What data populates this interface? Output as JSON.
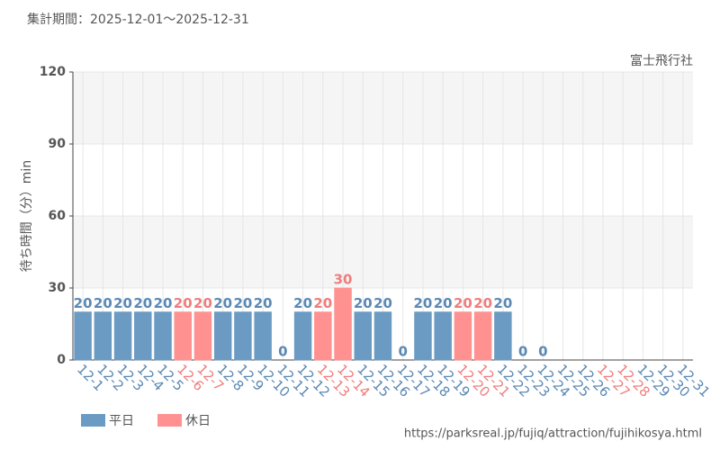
{
  "chart_data": {
    "type": "bar",
    "title": "集計期間：2025-12-01～2025-12-31",
    "annotation": "富士飛行社",
    "y_label": "待ち時間（分）min",
    "source": "https://parksreal.jp/fujiq/attraction/fujihikosya.html",
    "categories": [
      "12-1",
      "12-2",
      "12-3",
      "12-4",
      "12-5",
      "12-6",
      "12-7",
      "12-8",
      "12-9",
      "12-10",
      "12-11",
      "12-12",
      "12-13",
      "12-14",
      "12-15",
      "12-16",
      "12-17",
      "12-18",
      "12-19",
      "12-20",
      "12-21",
      "12-22",
      "12-23",
      "12-24",
      "12-25",
      "12-26",
      "12-27",
      "12-28",
      "12-29",
      "12-30",
      "12-31"
    ],
    "category_series": [
      0,
      0,
      0,
      0,
      0,
      1,
      1,
      0,
      0,
      0,
      0,
      0,
      1,
      1,
      0,
      0,
      0,
      0,
      0,
      1,
      1,
      0,
      0,
      0,
      0,
      0,
      1,
      1,
      0,
      0,
      0
    ],
    "series": [
      {
        "name": "平日",
        "color": "#6b9bc3",
        "label_color": "#5a88b4",
        "values": [
          20,
          20,
          20,
          20,
          20,
          null,
          null,
          20,
          20,
          20,
          0,
          20,
          null,
          null,
          20,
          20,
          0,
          20,
          20,
          null,
          null,
          20,
          0,
          0,
          null,
          null,
          null,
          null,
          null,
          null,
          null
        ]
      },
      {
        "name": "休日",
        "color": "#ff9191",
        "label_color": "#f07c7c",
        "values": [
          null,
          null,
          null,
          null,
          null,
          20,
          20,
          null,
          null,
          null,
          null,
          null,
          20,
          30,
          null,
          null,
          null,
          null,
          null,
          20,
          20,
          null,
          null,
          null,
          null,
          null,
          null,
          null,
          null,
          null,
          null
        ]
      }
    ],
    "ylim": [
      0,
      120
    ],
    "yticks": [
      0,
      30,
      60,
      90,
      120
    ],
    "grid": true
  }
}
